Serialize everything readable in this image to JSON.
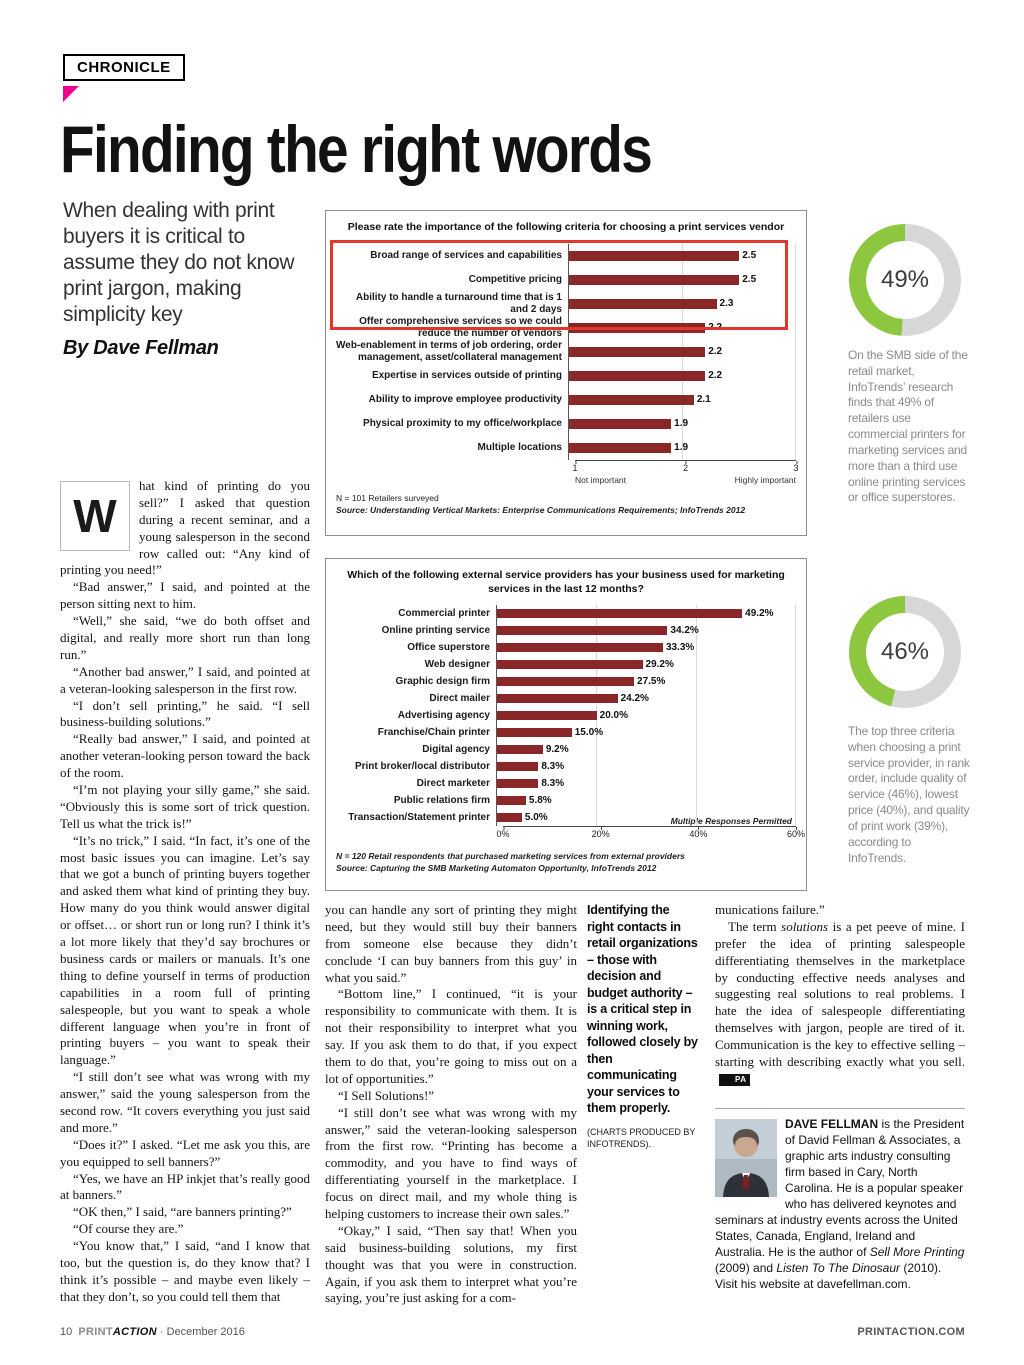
{
  "page": {
    "kicker": "CHRONICLE",
    "headline": "Finding the right words",
    "deck": "When dealing with print buyers it is critical to assume they do not know print jargon, making simplicity key",
    "byline": "By Dave Fellman"
  },
  "colors": {
    "accent_magenta": "#ec008c",
    "bar_maroon": "#8a2728",
    "donut_green": "#8dc63f",
    "donut_track": "#d7d7d7",
    "highlight_red": "#e2382c"
  },
  "chart_data": [
    {
      "type": "bar",
      "orientation": "horizontal",
      "title": "Please rate the importance of the following criteria for choosing a print services vendor",
      "categories": [
        "Broad range of services and capabilities",
        "Competitive pricing",
        "Ability to handle a turnaround time that is 1 and 2 days",
        "Offer comprehensive services so we could reduce the number of vendors",
        "Web-enablement in terms of job ordering, order management, asset/collateral management",
        "Expertise in services outside of printing",
        "Ability to improve employee productivity",
        "Physical proximity to my office/workplace",
        "Multiple locations"
      ],
      "values": [
        2.5,
        2.5,
        2.3,
        2.2,
        2.2,
        2.2,
        2.1,
        1.9,
        1.9
      ],
      "value_labels": [
        "2.5",
        "2.5",
        "2.3",
        "2.2",
        "2.2",
        "2.2",
        "2.1",
        "1.9",
        "1.9"
      ],
      "xlim": [
        1,
        3
      ],
      "ticks": [
        "1",
        "2",
        "3"
      ],
      "axis_left_label": "Not important",
      "axis_right_label": "Highly important",
      "note": "N = 101 Retailers surveyed",
      "source": "Source: Understanding Vertical Markets: Enterprise Communications Requirements; InfoTrends 2012",
      "highlight_rows": 3
    },
    {
      "type": "bar",
      "orientation": "horizontal",
      "title": "Which of the following external service providers has your business used for marketing services in the last 12 months?",
      "categories": [
        "Commercial printer",
        "Online printing service",
        "Office superstore",
        "Web designer",
        "Graphic design firm",
        "Direct mailer",
        "Advertising agency",
        "Franchise/Chain printer",
        "Digital agency",
        "Print broker/local distributor",
        "Direct marketer",
        "Public relations firm",
        "Transaction/Statement printer"
      ],
      "values": [
        49.2,
        34.2,
        33.3,
        29.2,
        27.5,
        24.2,
        20.0,
        15.0,
        9.2,
        8.3,
        8.3,
        5.8,
        5.0
      ],
      "value_labels": [
        "49.2%",
        "34.2%",
        "33.3%",
        "29.2%",
        "27.5%",
        "24.2%",
        "20.0%",
        "15.0%",
        "9.2%",
        "8.3%",
        "8.3%",
        "5.8%",
        "5.0%"
      ],
      "xlim": [
        0,
        60
      ],
      "ticks": [
        "0%",
        "20%",
        "40%",
        "60%"
      ],
      "annotation": "Multiple Responses Permitted",
      "note": "N = 120 Retail respondents that purchased marketing services from external providers",
      "source": "Source: Capturing the SMB Marketing Automaton Opportunity, InfoTrends 2012"
    }
  ],
  "sidebar": {
    "stat1": {
      "value": "49%",
      "pct": 49,
      "text": "On the SMB side of the retail market, InfoTrends’ research finds that 49% of retailers use commercial printers for marketing services and more than a third use online printing services or office superstores."
    },
    "stat2": {
      "value": "46%",
      "pct": 46,
      "text": "The top three criteria when choosing a print service provider, in rank order, include quality of service (46%), lowest price (40%), and quality of print work (39%), according to InfoTrends."
    }
  },
  "article": {
    "dropcap": "W",
    "col1": [
      "hat kind of printing do you sell?” I asked that question during a recent seminar, and a young salesperson in the second row called out: “Any kind of printing you need!”",
      "“Bad answer,” I said, and pointed at the person sitting next to him.",
      "“Well,” she said, “we do both offset and digital, and really more short run than long run.”",
      "“Another bad answer,” I said, and pointed at a veteran-looking salesperson in the first row.",
      "“I don’t sell printing,” he said. “I sell business-building solutions.”",
      "“Really bad answer,” I said, and pointed at another veteran-looking person toward the back of the room.",
      "“I’m not playing your silly game,” she said. “Obviously this is some sort of trick question. Tell us what the trick is!”",
      "“It’s no trick,” I said. “In fact, it’s one of the most basic issues you can imagine. Let’s say that we got a bunch of printing buyers together and asked them what kind of printing they buy. How many do you think would answer digital or offset… or short run or long run? I think it’s a lot more likely that they’d say brochures or business cards or mailers or manuals. It’s one thing to define yourself in terms of production capabilities in a room full of printing salespeople, but you want to speak a whole different language when you’re in front of printing buyers – you want to speak their language.”",
      "“I still don’t see what was wrong with my answer,” said the young salesperson from the second row. “It covers everything you just said and more.”",
      "“Does it?” I asked. “Let me ask you this, are you equipped to sell banners?”",
      "“Yes, we have an HP inkjet that’s really good at banners.”",
      "“OK then,” I said, “are banners printing?”",
      "“Of course they are.”",
      "“You know that,” I said, “and I know that too, but the question is, do they know that? I think it’s possible – and maybe even likely – that they don’t, so you could tell them that"
    ],
    "col2": [
      "you can handle any sort of printing they might need, but they would still buy their banners from someone else because they didn’t conclude ‘I can buy banners from this guy’ in what you said.”",
      "“Bottom line,” I continued, “it is your responsibility to communicate with them. It is not their responsibility to interpret what you say. If you ask them to do that, if you expect them to do that, you’re going to miss out on a lot of opportunities.”",
      "“I Sell Solutions!”",
      "“I still don’t see what was wrong with my answer,” said the veteran-looking salesperson from the first row. “Printing has become a commodity, and you have to find ways of differentiating yourself in the marketplace. I focus on direct mail, and my whole thing is helping customers to increase their own sales.”",
      "“Okay,” I said, “Then say that! When you said business-building solutions, my first thought was that you were in construction. Again, if you ask them to interpret what you’re saying, you’re just asking for a com-"
    ],
    "callout": "Identifying the right contacts in retail organizations – those with decision and budget authority – is a critical step in winning work, followed closely by then communicating your services to them properly.",
    "callout_credit": "(CHARTS PRODUCED BY INFOTRENDS).",
    "col3": [
      [
        {
          "t": "munications failure.”"
        }
      ],
      [
        {
          "t": "The term "
        },
        {
          "t": "solutions",
          "i": true
        },
        {
          "t": " is a pet peeve of mine. I prefer the idea of printing salespeople differentiating themselves in the marketplace by conducting effective needs analyses and suggesting real solutions to real problems. I hate the idea of salespeople differentiating themselves with jargon, people are tired of it. Communication is the key to effective selling – starting with describing exactly what you sell."
        },
        {
          "t": "PA",
          "pa": true
        }
      ]
    ],
    "bio": [
      [
        {
          "t": "DAVE FELLMAN",
          "b": true
        },
        {
          "t": " is the President of David Fellman & Associates, a graphic arts industry consulting firm based in Cary, North Carolina. He is a popular speaker who has delivered keynotes and seminars at industry events across the United States, Canada, England, Ireland and Australia. He is the author of "
        },
        {
          "t": "Sell More Printing",
          "i": true
        },
        {
          "t": " (2009) and "
        },
        {
          "t": "Listen To The Dinosaur",
          "i": true
        },
        {
          "t": " (2010). Visit his website at davefellman.com."
        }
      ]
    ]
  },
  "footer": {
    "page_number": "10",
    "brand_print": "PRINT",
    "brand_action": "ACTION",
    "date": " · December 2016",
    "site": "PRINTACTION.COM"
  }
}
